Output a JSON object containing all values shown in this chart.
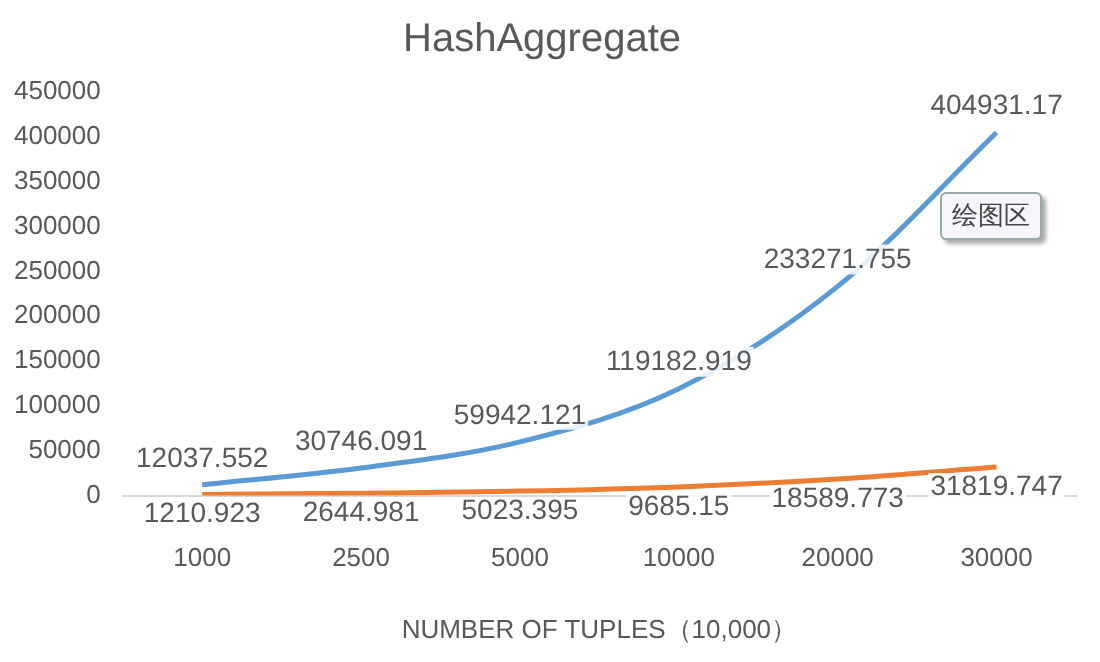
{
  "chart_data": {
    "type": "line",
    "title": "HashAggregate",
    "xlabel": "NUMBER OF TUPLES（10,000）",
    "categories": [
      "1000",
      "2500",
      "5000",
      "10000",
      "20000",
      "30000"
    ],
    "series": [
      {
        "color": "#5b9bd5",
        "values": [
          12037.552,
          30746.091,
          59942.121,
          119182.919,
          233271.755,
          404931.17
        ]
      },
      {
        "color": "#ed7d31",
        "values": [
          1210.923,
          2644.981,
          5023.395,
          9685.15,
          18589.773,
          31819.747
        ]
      }
    ],
    "ylim": [
      0,
      450000
    ],
    "yticks": [
      0,
      50000,
      100000,
      150000,
      200000,
      250000,
      300000,
      350000,
      400000,
      450000
    ],
    "grid": false,
    "legend": false,
    "marker": "none",
    "data_labels": true,
    "annotations": [
      "绘图区"
    ]
  }
}
